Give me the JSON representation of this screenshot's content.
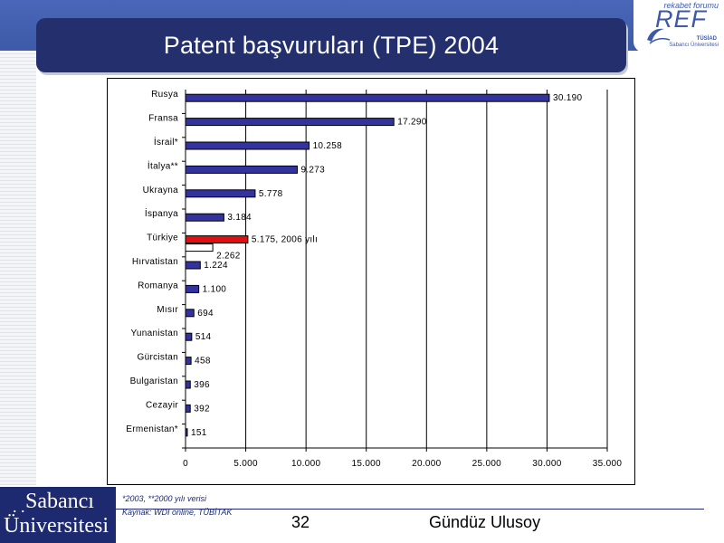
{
  "slide": {
    "title": "Patent başvuruları (TPE) 2004",
    "footnote_1": "*2003, **2000 yılı verisi",
    "footnote_2": "Kaynak: WDI online, TÜBİTAK",
    "page_number": "32",
    "author": "Gündüz Ulusoy"
  },
  "logos": {
    "ref_small": "rekabet forumu",
    "ref_big": "REF",
    "ref_sub_1": "TÜSİAD",
    "ref_sub_2": "Sabancı Üniversitesi",
    "su_line_1": "Sabancı",
    "su_line_2": "Üniversitesi"
  },
  "colors": {
    "bar": "#3333a0",
    "highlight_bar": "#e01010",
    "title_bar": "#24306e"
  },
  "chart_data": {
    "type": "bar",
    "orientation": "horizontal",
    "categories": [
      "Rusya",
      "Fransa",
      "İsrail*",
      "İtalya**",
      "Ukrayna",
      "İspanya",
      "Türkiye",
      "Hırvatistan",
      "Romanya",
      "Mısır",
      "Yunanistan",
      "Gürcistan",
      "Bulgaristan",
      "Cezayir",
      "Ermenistan*"
    ],
    "values": [
      30190,
      17290,
      10258,
      9273,
      5778,
      3184,
      5175,
      1224,
      1100,
      694,
      514,
      458,
      396,
      392,
      151
    ],
    "labels": [
      "30.190",
      "17.290",
      "10.258",
      "9.273",
      "5.778",
      "3.184",
      "5.175, 2006 yılı",
      "1.224",
      "1.100",
      "694",
      "514",
      "458",
      "396",
      "392",
      "151"
    ],
    "secondary": {
      "category": "Türkiye",
      "value": 2262,
      "label": "2.262"
    },
    "highlight": "Türkiye",
    "xlim": [
      0,
      35000
    ],
    "xticks": [
      0,
      5000,
      10000,
      15000,
      20000,
      25000,
      30000,
      35000
    ],
    "xtick_labels": [
      "0",
      "5.000",
      "10.000",
      "15.000",
      "20.000",
      "25.000",
      "30.000",
      "35.000"
    ],
    "grid": "vertical"
  }
}
